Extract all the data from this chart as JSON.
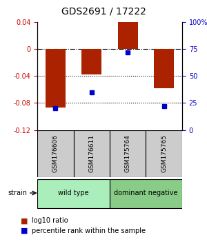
{
  "title": "GDS2691 / 17222",
  "samples": [
    "GSM176606",
    "GSM176611",
    "GSM175764",
    "GSM175765"
  ],
  "log10_ratios": [
    -0.087,
    -0.038,
    0.04,
    -0.058
  ],
  "percentile_ranks": [
    20,
    35,
    72,
    22
  ],
  "groups": [
    {
      "label": "wild type",
      "indices": [
        0,
        1
      ],
      "color": "#aaeebb"
    },
    {
      "label": "dominant negative",
      "indices": [
        2,
        3
      ],
      "color": "#88cc88"
    }
  ],
  "bar_color": "#aa2200",
  "dot_color": "#0000cc",
  "ylim_left": [
    -0.12,
    0.04
  ],
  "ylim_right": [
    0,
    100
  ],
  "yticks_left": [
    0.04,
    0.0,
    -0.04,
    -0.08,
    -0.12
  ],
  "yticks_right": [
    100,
    75,
    50,
    25,
    0
  ],
  "ytick_labels_left": [
    "0.04",
    "0",
    "-0.04",
    "-0.08",
    "-0.12"
  ],
  "ytick_labels_right": [
    "100%",
    "75",
    "50",
    "25",
    "0"
  ],
  "hline_zero": 0.0,
  "hlines_dotted": [
    -0.04,
    -0.08
  ],
  "bar_width": 0.55,
  "label_bar_color": "#aa2200",
  "label_dot_color": "#0000cc",
  "legend_bar_text": "log10 ratio",
  "legend_dot_text": "percentile rank within the sample",
  "strain_label": "strain",
  "group_box_gray": "#cccccc",
  "background_color": "#ffffff"
}
